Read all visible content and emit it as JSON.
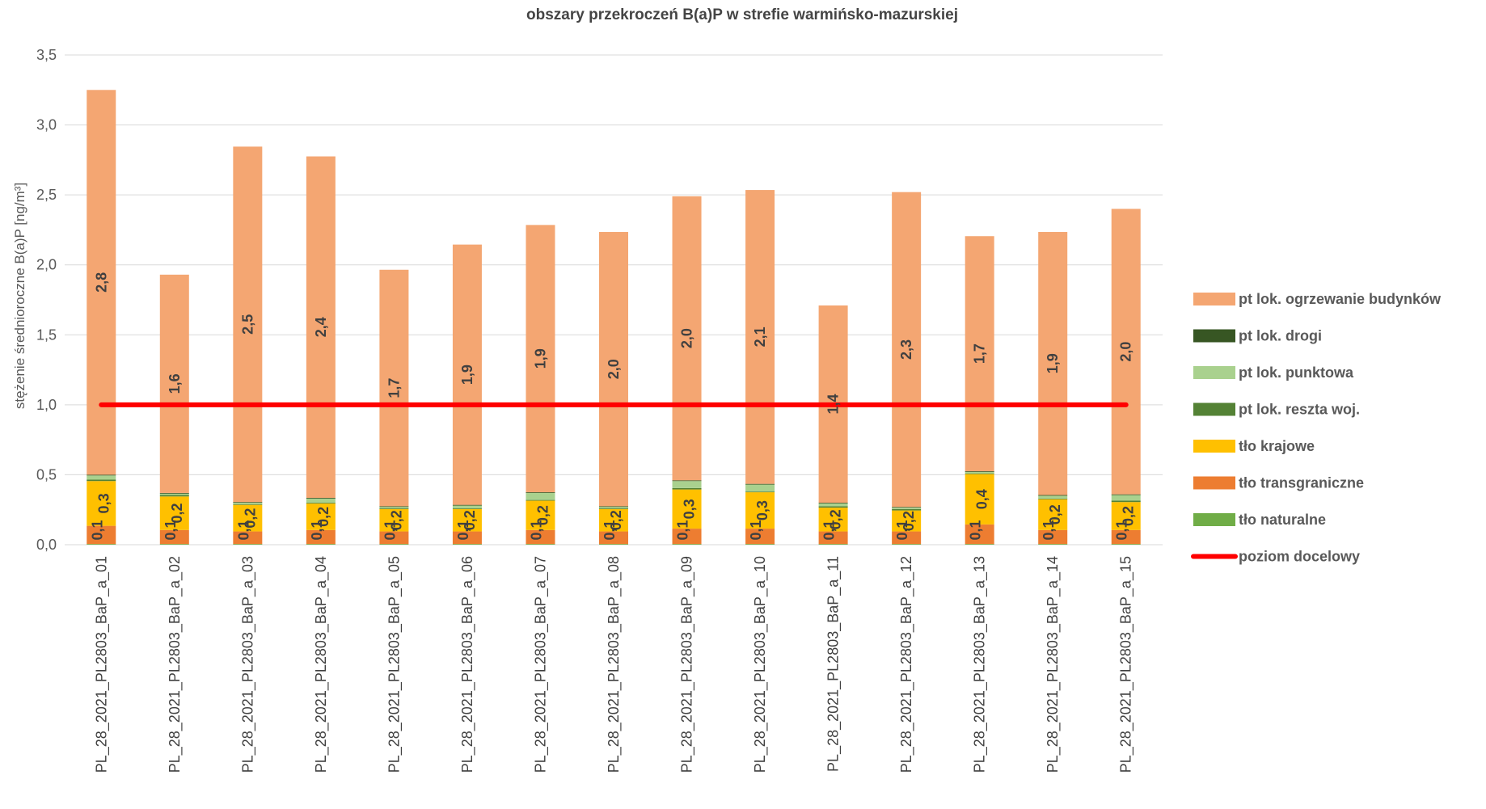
{
  "chart_data": {
    "type": "bar",
    "stacked": true,
    "title": "obszary przekroczeń B(a)P w strefie warmińsko-mazurskiej",
    "ylabel": "stężenie średnioroczne B(a)P [ng/m³]",
    "xlabel": "",
    "ylim": [
      0,
      3.5
    ],
    "yticks": [
      "0,0",
      "0,5",
      "1,0",
      "1,5",
      "2,0",
      "2,5",
      "3,0",
      "3,5"
    ],
    "grid": true,
    "legend_position": "right",
    "categories": [
      "PL_28_2021_PL2803_BaP_a_01",
      "PL_28_2021_PL2803_BaP_a_02",
      "PL_28_2021_PL2803_BaP_a_03",
      "PL_28_2021_PL2803_BaP_a_04",
      "PL_28_2021_PL2803_BaP_a_05",
      "PL_28_2021_PL2803_BaP_a_06",
      "PL_28_2021_PL2803_BaP_a_07",
      "PL_28_2021_PL2803_BaP_a_08",
      "PL_28_2021_PL2803_BaP_a_09",
      "PL_28_2021_PL2803_BaP_a_10",
      "PL_28_2021_PL2803_BaP_a_11",
      "PL_28_2021_PL2803_BaP_a_12",
      "PL_28_2021_PL2803_BaP_a_13",
      "PL_28_2021_PL2803_BaP_a_14",
      "PL_28_2021_PL2803_BaP_a_15"
    ],
    "series": [
      {
        "name": "tło naturalne",
        "color": "#70AD47",
        "values": [
          0.005,
          0.005,
          0.005,
          0.005,
          0.005,
          0.005,
          0.005,
          0.005,
          0.005,
          0.005,
          0.005,
          0.005,
          0.005,
          0.005,
          0.005
        ],
        "labels": []
      },
      {
        "name": "tło transgraniczne",
        "color": "#ED7D31",
        "values": [
          0.13,
          0.1,
          0.09,
          0.1,
          0.09,
          0.09,
          0.1,
          0.09,
          0.11,
          0.11,
          0.09,
          0.09,
          0.14,
          0.1,
          0.1
        ],
        "labels": [
          "0,1",
          "0,1",
          "0,1",
          "0,1",
          "0,1",
          "0,1",
          "0,1",
          "0,1",
          "0,1",
          "0,1",
          "0,1",
          "0,1",
          "0,1",
          "0,1",
          "0,1"
        ]
      },
      {
        "name": "tło krajowe",
        "color": "#FFC000",
        "values": [
          0.32,
          0.24,
          0.19,
          0.19,
          0.16,
          0.16,
          0.21,
          0.16,
          0.28,
          0.26,
          0.17,
          0.15,
          0.36,
          0.22,
          0.2
        ],
        "labels": [
          "0,3",
          "0,2",
          "0,2",
          "0,2",
          "0,2",
          "0,2",
          "0,2",
          "0,2",
          "0,3",
          "0,3",
          "0,2",
          "0,2",
          "0,4",
          "0,2",
          "0,2"
        ]
      },
      {
        "name": "pt lok. reszta woj.",
        "color": "#548235",
        "values": [
          0.01,
          0.01,
          0.005,
          0.005,
          0.005,
          0.005,
          0.005,
          0.005,
          0.01,
          0.005,
          0.01,
          0.01,
          0.005,
          0.005,
          0.01
        ],
        "labels": []
      },
      {
        "name": "pt lok. punktowa",
        "color": "#A9D18E",
        "values": [
          0.03,
          0.01,
          0.01,
          0.03,
          0.01,
          0.02,
          0.05,
          0.01,
          0.05,
          0.05,
          0.02,
          0.01,
          0.01,
          0.02,
          0.04
        ],
        "labels": []
      },
      {
        "name": "pt lok. drogi",
        "color": "#375623",
        "values": [
          0.005,
          0.005,
          0.005,
          0.005,
          0.005,
          0.005,
          0.005,
          0.005,
          0.005,
          0.005,
          0.005,
          0.005,
          0.005,
          0.005,
          0.005
        ],
        "labels": []
      },
      {
        "name": "pt lok. ogrzewanie budynków",
        "color": "#F4A672",
        "values": [
          2.75,
          1.56,
          2.54,
          2.44,
          1.69,
          1.86,
          1.91,
          1.96,
          2.03,
          2.1,
          1.41,
          2.25,
          1.68,
          1.88,
          2.04
        ],
        "labels": [
          "2,8",
          "1,6",
          "2,5",
          "2,4",
          "1,7",
          "1,9",
          "1,9",
          "2,0",
          "2,0",
          "2,1",
          "1,4",
          "2,3",
          "1,7",
          "1,9",
          "2,0"
        ]
      }
    ],
    "legend_order": [
      "pt lok. ogrzewanie budynków",
      "pt lok. drogi",
      "pt lok. punktowa",
      "pt lok. reszta woj.",
      "tło krajowe",
      "tło transgraniczne",
      "tło naturalne",
      "poziom docelowy"
    ],
    "reference_line": {
      "name": "poziom docelowy",
      "value": 1.0,
      "color": "#FF0000"
    }
  }
}
